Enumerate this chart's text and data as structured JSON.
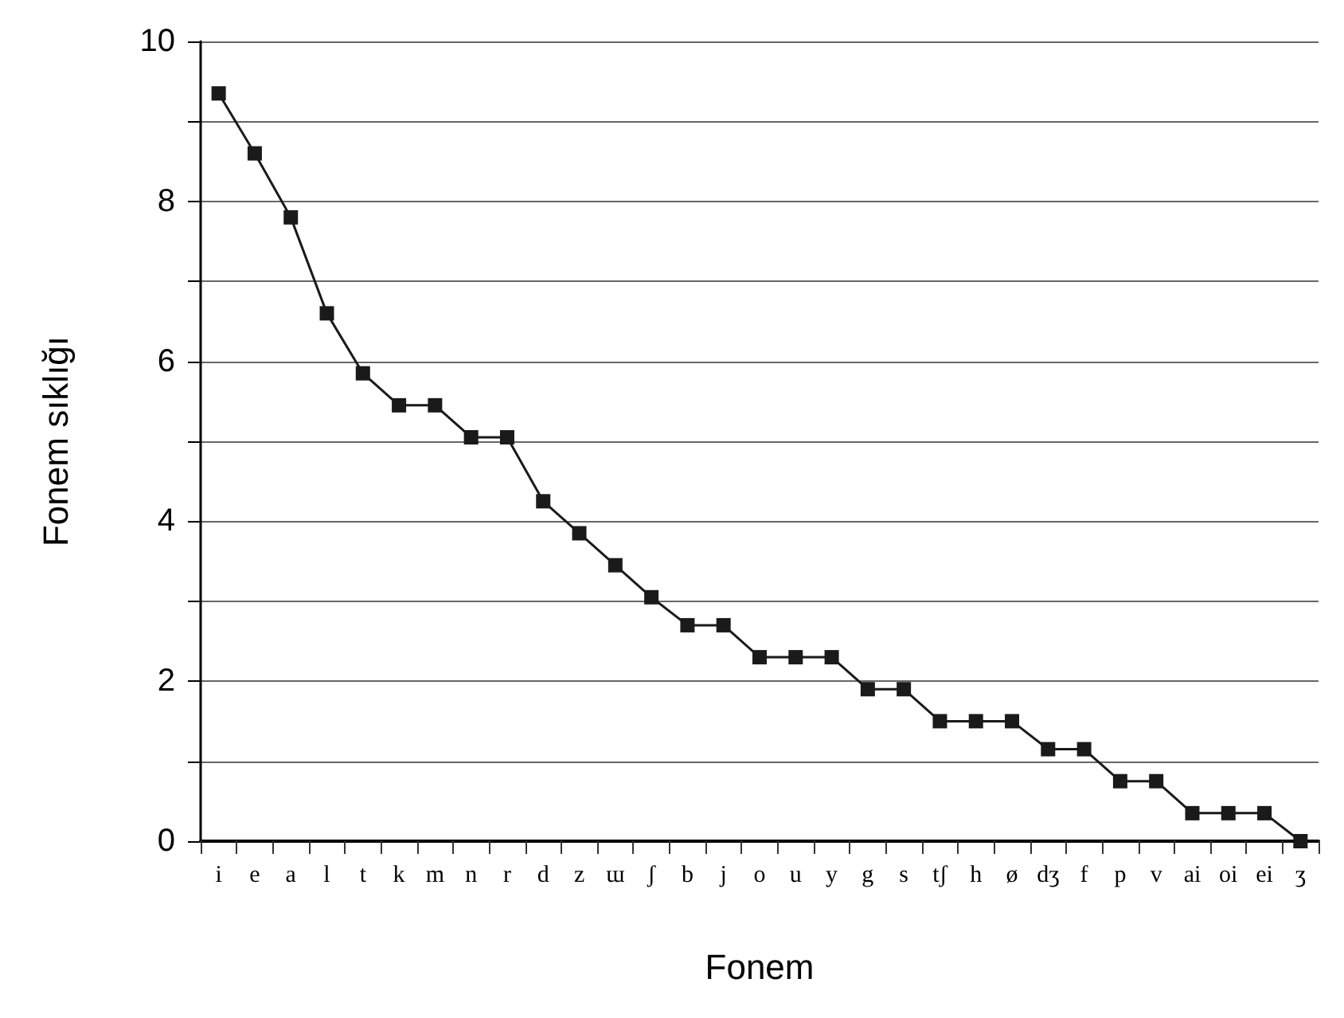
{
  "chart_data": {
    "type": "line",
    "xlabel": "Fonem",
    "ylabel": "Fonem sıklığı",
    "categories": [
      "i",
      "e",
      "a",
      "l",
      "t",
      "k",
      "m",
      "n",
      "r",
      "d",
      "z",
      "ɯ",
      "ʃ",
      "b",
      "j",
      "o",
      "u",
      "y",
      "g",
      "s",
      "tʃ",
      "h",
      "ø",
      "dʒ",
      "f",
      "p",
      "v",
      "ai",
      "oi",
      "ei",
      "ʒ"
    ],
    "series": [
      {
        "color": "#1a1a1a",
        "values": [
          9.35,
          8.6,
          7.8,
          6.6,
          5.85,
          5.45,
          5.45,
          5.05,
          5.05,
          4.25,
          3.85,
          3.45,
          3.05,
          2.7,
          2.7,
          2.3,
          2.3,
          2.3,
          1.9,
          1.9,
          1.5,
          1.5,
          1.5,
          1.15,
          1.15,
          0.75,
          0.75,
          0.35,
          0.35,
          0.35,
          0
        ]
      }
    ],
    "ylim": [
      0,
      10
    ],
    "yticks": [
      0,
      2,
      4,
      6,
      8,
      10
    ],
    "grid": "y",
    "marker": "square",
    "line_style": "solid"
  }
}
